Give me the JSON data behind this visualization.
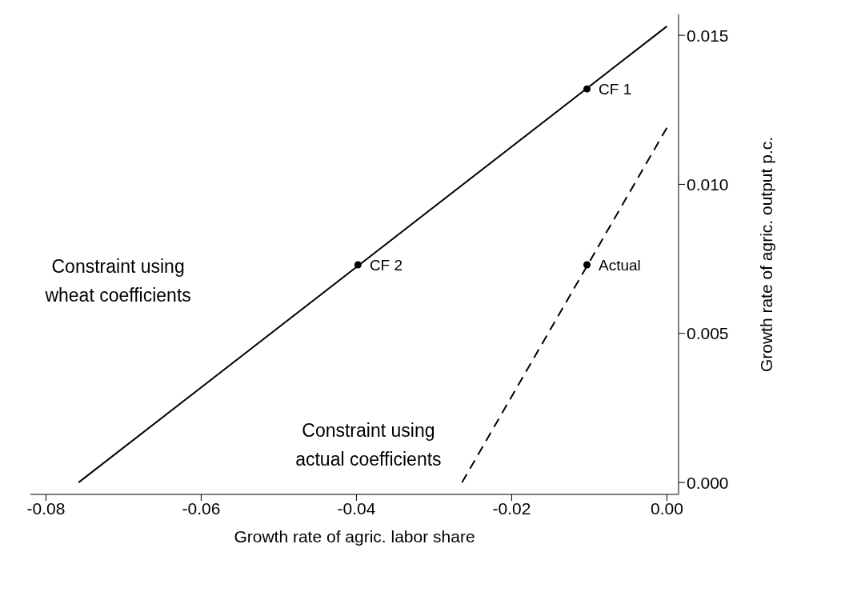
{
  "chart_data": {
    "type": "line",
    "xlabel": "Growth rate of agric. labor share",
    "ylabel": "Growth rate of agric. output p.c.",
    "xlim": [
      -0.082,
      0.0015
    ],
    "ylim": [
      -0.0004,
      0.0157
    ],
    "xticks": [
      {
        "value": -0.08,
        "label": "-0.08"
      },
      {
        "value": -0.06,
        "label": "-0.06"
      },
      {
        "value": -0.04,
        "label": "-0.04"
      },
      {
        "value": -0.02,
        "label": "-0.02"
      },
      {
        "value": 0,
        "label": "0.00"
      }
    ],
    "yticks": [
      {
        "value": 0,
        "label": "0.000"
      },
      {
        "value": 0.005,
        "label": "0.005"
      },
      {
        "value": 0.01,
        "label": "0.010"
      },
      {
        "value": 0.015,
        "label": "0.015"
      }
    ],
    "series": [
      {
        "color": "#000000",
        "x": [
          -0.0758,
          0
        ],
        "values": [
          0,
          0.0153
        ],
        "line_style": "solid",
        "marker": "none"
      },
      {
        "color": "#000000",
        "x": [
          -0.0264,
          0
        ],
        "values": [
          0,
          0.0119
        ],
        "line_style": "dashed",
        "marker": "none"
      },
      {
        "type": "scatter",
        "color": "#000000",
        "x": [
          -0.0103,
          -0.0398,
          -0.0103
        ],
        "values": [
          0.0132,
          0.0073,
          0.0073
        ],
        "value_labels": [
          "CF 1",
          "CF 2",
          "Actual"
        ],
        "marker": "circle"
      }
    ],
    "annotations": [
      "Constraint using\nwheat coefficients",
      "Constraint using\nactual coefficients"
    ]
  }
}
